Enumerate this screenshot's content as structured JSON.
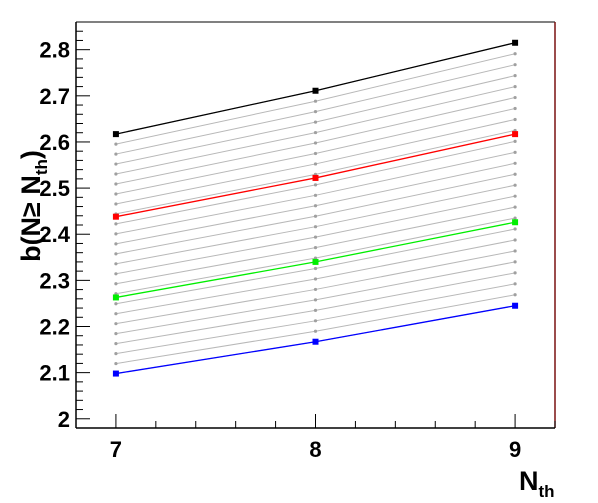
{
  "chart_data": {
    "type": "line",
    "x": [
      7,
      8,
      9
    ],
    "xlim": [
      6.8,
      9.2
    ],
    "ylim": [
      1.98,
      2.86
    ],
    "xticks": [
      7,
      8,
      9
    ],
    "xtick_labels": [
      "7",
      "8",
      "9"
    ],
    "yticks": [
      2.0,
      2.1,
      2.2,
      2.3,
      2.4,
      2.5,
      2.6,
      2.7,
      2.8
    ],
    "ytick_labels": [
      "2",
      "2.1",
      "2.2",
      "2.3",
      "2.4",
      "2.5",
      "2.6",
      "2.7",
      "2.8"
    ],
    "xlabel": {
      "main": "N",
      "sub": "th"
    },
    "ylabel": {
      "main": "b(N",
      "ge": "≥",
      "n": " N",
      "sub": "th",
      "close": ")"
    },
    "grid": false,
    "legend": "none",
    "series": [
      {
        "color": "#000000",
        "marker": "square",
        "values": [
          2.617,
          2.711,
          2.815
        ]
      },
      {
        "color": "#ff0000",
        "marker": "square",
        "values": [
          2.438,
          2.522,
          2.617
        ]
      },
      {
        "color": "#00ee00",
        "marker": "square",
        "values": [
          2.263,
          2.34,
          2.426
        ]
      },
      {
        "color": "#0000ff",
        "marker": "square",
        "values": [
          2.098,
          2.167,
          2.245
        ]
      }
    ],
    "background_series": {
      "color": "#b8b8b8",
      "marker": "dot",
      "description_count": 25,
      "first": [
        2.098,
        2.167,
        2.245
      ],
      "last": [
        2.617,
        2.711,
        2.815
      ]
    }
  }
}
